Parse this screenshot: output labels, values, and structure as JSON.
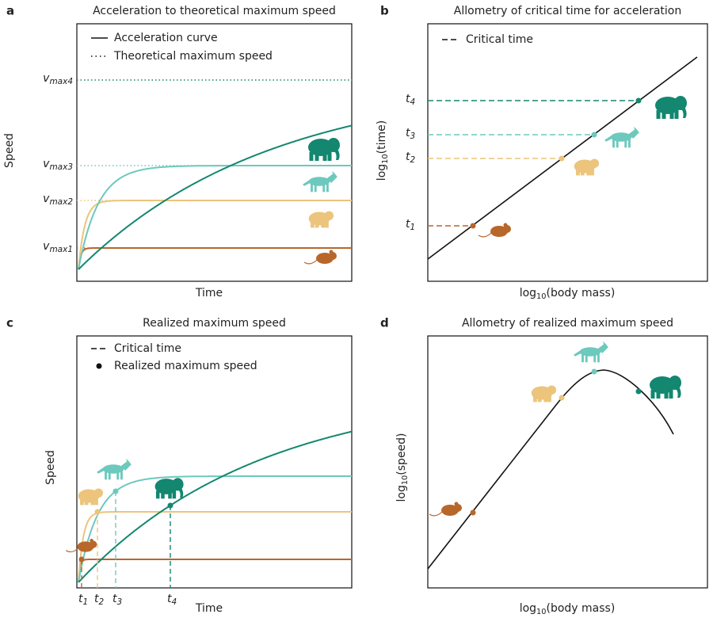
{
  "panels": [
    {
      "label": "a",
      "title": "Acceleration to theoretical maximum speed",
      "x_label": "Time",
      "y_label": "Speed",
      "legend": [
        "Acceleration curve",
        "Theoretical maximum speed"
      ],
      "levels": [
        {
          "main": "v",
          "sub": "max4"
        },
        {
          "main": "v",
          "sub": "max3"
        },
        {
          "main": "v",
          "sub": "max2"
        },
        {
          "main": "v",
          "sub": "max1"
        }
      ]
    },
    {
      "label": "b",
      "title": "Allometry of critical time for acceleration",
      "x_label": {
        "pre": "log",
        "sub": "10",
        "post": "(body mass)"
      },
      "y_label": {
        "pre": "log",
        "sub": "10",
        "post": "(time)"
      },
      "legend": [
        "Critical time"
      ],
      "levels": [
        {
          "main": "t",
          "sub": "4"
        },
        {
          "main": "t",
          "sub": "3"
        },
        {
          "main": "t",
          "sub": "2"
        },
        {
          "main": "t",
          "sub": "1"
        }
      ]
    },
    {
      "label": "c",
      "title": "Realized maximum speed",
      "x_label": "Time",
      "y_label": "Speed",
      "legend": [
        "Critical time",
        "Realized maximum speed"
      ],
      "levels": [
        {
          "main": "t",
          "sub": "1"
        },
        {
          "main": "t",
          "sub": "2"
        },
        {
          "main": "t",
          "sub": "3"
        },
        {
          "main": "t",
          "sub": "4"
        }
      ]
    },
    {
      "label": "d",
      "title": "Allometry of realized maximum speed",
      "x_label": {
        "pre": "log",
        "sub": "10",
        "post": "(body mass)"
      },
      "y_label": {
        "pre": "log",
        "sub": "10",
        "post": "(speed)"
      }
    }
  ]
}
